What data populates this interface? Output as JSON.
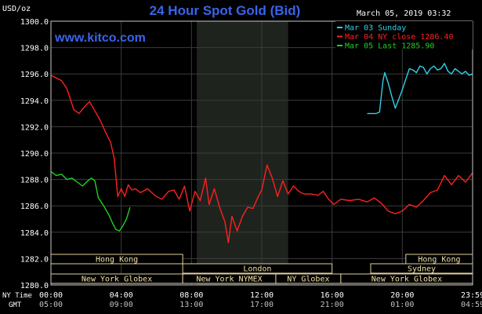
{
  "header": {
    "unit_label": "USD/oz",
    "title": "24 Hour Spot Gold (Bid)",
    "timestamp": "March 05, 2019 03:32",
    "watermark": "www.kitco.com"
  },
  "legend": [
    {
      "label": "Mar 03 Sunday",
      "color": "#30d0e8"
    },
    {
      "label": "Mar 04 NY close 1286.40",
      "color": "#ff2020"
    },
    {
      "label": "Mar 05 Last 1285.90",
      "color": "#20d020"
    }
  ],
  "sessions": {
    "row1": [
      {
        "label": "Hong Kong",
        "x_start": 0,
        "x_end": 7.5
      },
      {
        "label": "Hong Kong",
        "x_start": 20.2,
        "x_end": 24
      }
    ],
    "row2": [
      {
        "label": "London",
        "x_start": 7.5,
        "x_end": 16
      },
      {
        "label": "Sydney",
        "x_start": 18.2,
        "x_end": 24
      }
    ],
    "row3": [
      {
        "label": "New York Globex",
        "x_start": 0,
        "x_end": 7.5
      },
      {
        "label": "New York NYMEX",
        "x_start": 7.5,
        "x_end": 12.8
      },
      {
        "label": "NY Globex",
        "x_start": 12.8,
        "x_end": 16.5
      },
      {
        "label": "New York Globex",
        "x_start": 16.5,
        "x_end": 24
      }
    ]
  },
  "x_row_labels": {
    "ny": "NY Time",
    "gmt": "GMT"
  },
  "chart_data": {
    "type": "line",
    "xlim": [
      0,
      24
    ],
    "ylim": [
      1280,
      1300
    ],
    "y_ticks": [
      "1280.0",
      "1282.0",
      "1284.0",
      "1286.0",
      "1288.0",
      "1290.0",
      "1292.0",
      "1294.0",
      "1296.0",
      "1298.0",
      "1300.0"
    ],
    "x_ticks_ny": [
      "00:00",
      "04:00",
      "08:00",
      "12:00",
      "16:00",
      "20:00",
      "23:59"
    ],
    "x_ticks_gmt": [
      "05:00",
      "09:00",
      "13:00",
      "17:00",
      "21:00",
      "01:00",
      "04:59"
    ],
    "shaded_region": [
      8.3,
      13.5
    ],
    "series": [
      {
        "name": "Mar 03 Sunday",
        "color": "#30d0e8",
        "x": [
          18.0,
          18.5,
          18.7,
          18.9,
          19.0,
          19.2,
          19.4,
          19.6,
          19.8,
          20.0,
          20.2,
          20.4,
          20.6,
          20.8,
          21.0,
          21.2,
          21.4,
          21.6,
          21.8,
          22.0,
          22.2,
          22.4,
          22.6,
          22.8,
          23.0,
          23.2,
          23.4,
          23.6,
          23.8,
          24.0
        ],
        "y": [
          1293.0,
          1293.0,
          1293.1,
          1295.5,
          1296.1,
          1295.3,
          1294.3,
          1293.4,
          1294.1,
          1294.8,
          1295.6,
          1296.4,
          1296.3,
          1296.1,
          1296.6,
          1296.5,
          1296.0,
          1296.4,
          1296.6,
          1296.3,
          1296.4,
          1296.8,
          1296.2,
          1296.0,
          1296.4,
          1296.2,
          1296.0,
          1296.2,
          1295.9,
          1296.0
        ]
      },
      {
        "name": "Mar 04 NY close 1286.40",
        "color": "#ff2020",
        "x": [
          0,
          0.3,
          0.6,
          0.9,
          1.1,
          1.3,
          1.6,
          1.9,
          2.2,
          2.5,
          2.8,
          3.1,
          3.4,
          3.6,
          3.8,
          4.0,
          4.2,
          4.4,
          4.6,
          4.8,
          5.1,
          5.5,
          5.9,
          6.3,
          6.7,
          7.0,
          7.3,
          7.6,
          7.9,
          8.2,
          8.5,
          8.8,
          9.0,
          9.3,
          9.6,
          9.9,
          10.1,
          10.3,
          10.6,
          10.9,
          11.2,
          11.5,
          11.8,
          12.0,
          12.3,
          12.6,
          12.9,
          13.2,
          13.5,
          13.8,
          14.1,
          14.4,
          14.8,
          15.2,
          15.5,
          15.8,
          16.1,
          16.5,
          17.0,
          17.5,
          18.0,
          18.4,
          18.8,
          19.2,
          19.6,
          20.0,
          20.4,
          20.8,
          21.2,
          21.6,
          22.0,
          22.4,
          22.8,
          23.2,
          23.6,
          24.0
        ],
        "y": [
          1295.9,
          1295.7,
          1295.5,
          1294.9,
          1294.1,
          1293.3,
          1293.0,
          1293.5,
          1293.9,
          1293.2,
          1292.5,
          1291.6,
          1290.8,
          1289.6,
          1286.7,
          1287.3,
          1286.7,
          1287.6,
          1287.2,
          1287.3,
          1287.0,
          1287.3,
          1286.8,
          1286.5,
          1287.1,
          1287.2,
          1286.5,
          1287.5,
          1285.6,
          1287.1,
          1286.4,
          1288.1,
          1286.1,
          1287.3,
          1285.9,
          1284.8,
          1283.2,
          1285.2,
          1284.1,
          1285.2,
          1285.9,
          1285.8,
          1286.7,
          1287.2,
          1289.1,
          1288.1,
          1286.7,
          1287.9,
          1286.9,
          1287.5,
          1287.1,
          1286.9,
          1286.9,
          1286.8,
          1287.1,
          1286.5,
          1286.1,
          1286.5,
          1286.4,
          1286.5,
          1286.3,
          1286.6,
          1286.2,
          1285.6,
          1285.4,
          1285.6,
          1286.1,
          1285.9,
          1286.4,
          1287.0,
          1287.2,
          1288.3,
          1287.6,
          1288.3,
          1287.8,
          1288.5
        ]
      },
      {
        "name": "Mar 05 Last 1285.90",
        "color": "#20d020",
        "x": [
          0,
          0.3,
          0.6,
          0.9,
          1.2,
          1.5,
          1.8,
          2.1,
          2.3,
          2.5,
          2.7,
          3.0,
          3.3,
          3.5,
          3.7,
          3.9,
          4.1,
          4.3,
          4.5
        ],
        "y": [
          1288.6,
          1288.3,
          1288.4,
          1288.0,
          1288.1,
          1287.8,
          1287.5,
          1287.9,
          1288.1,
          1287.9,
          1286.6,
          1286.0,
          1285.3,
          1284.7,
          1284.2,
          1284.1,
          1284.5,
          1285.0,
          1285.9
        ]
      }
    ]
  }
}
